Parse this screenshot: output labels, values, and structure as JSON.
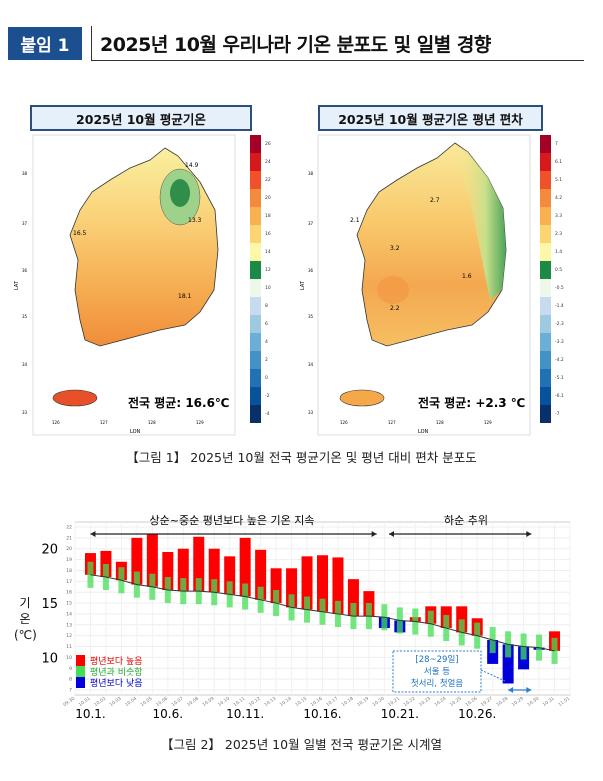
{
  "header": {
    "badge": "붙임 1",
    "title": "2025년 10월 우리나라 기온 분포도 및 일별 경향"
  },
  "map_mean": {
    "title": "2025년 10월 평균기온",
    "summary": "전국 평균: 16.6℃",
    "colorbar": [
      "26",
      "24",
      "22",
      "20",
      "18",
      "16",
      "14",
      "12",
      "10",
      "8",
      "6",
      "4",
      "2",
      "0",
      "-2",
      "-4"
    ],
    "colors": [
      "#a50026",
      "#d7191c",
      "#f0502a",
      "#f58a3c",
      "#f9b04f",
      "#fcd470",
      "#fdf7a8",
      "#1a8a46",
      "#edf8ea",
      "#c6dbef",
      "#9ecae1",
      "#6baed6",
      "#4292c6",
      "#2171b5",
      "#08519c",
      "#08306b"
    ],
    "contour_labels": [
      "14.9",
      "13.3",
      "16.5",
      "18.1"
    ],
    "lat_ticks": [
      "38",
      "37",
      "36",
      "35",
      "34",
      "33"
    ],
    "lon_ticks": [
      "126",
      "127",
      "128",
      "129"
    ],
    "xlabel": "LON",
    "ylabel": "LAT"
  },
  "map_anomaly": {
    "title": "2025년 10월 평균기온  평년 편차",
    "summary": "전국 평균: +2.3 ℃",
    "colorbar": [
      "7",
      "6.1",
      "5.1",
      "4.2",
      "3.3",
      "2.3",
      "1.4",
      "0.5",
      "-0.5",
      "-1.4",
      "-2.3",
      "-3.3",
      "-4.2",
      "-5.1",
      "-6.1",
      "-7"
    ],
    "colors": [
      "#a50026",
      "#d7191c",
      "#f0502a",
      "#f58a3c",
      "#f9b04f",
      "#fcd470",
      "#fdf7a8",
      "#1a8a46",
      "#edf8ea",
      "#c6dbef",
      "#9ecae1",
      "#6baed6",
      "#4292c6",
      "#2171b5",
      "#08519c",
      "#08306b"
    ],
    "contour_labels": [
      "2.7",
      "3.2",
      "2.1",
      "1.6",
      "2.2"
    ],
    "lat_ticks": [
      "38",
      "37",
      "36",
      "35",
      "34",
      "33"
    ],
    "lon_ticks": [
      "126",
      "127",
      "128",
      "129"
    ],
    "xlabel": "LON",
    "ylabel": "LAT"
  },
  "caption1": "【그림 1】 2025년 10월 전국 평균기온 및 평년 대비 편차 분포도",
  "caption2": "【그림 2】 2025년 10월 일별 전국 평균기온 시계열",
  "chart_data": {
    "type": "bar",
    "ylabel": "기온\n(℃)",
    "ylabel_lines": [
      "기",
      "온",
      "(℃)"
    ],
    "ylim": [
      7,
      22
    ],
    "y_major_ticks": [
      "20",
      "15",
      "10"
    ],
    "y_minor_ticks": [
      "22",
      "21",
      "20",
      "19",
      "18",
      "17",
      "16",
      "15",
      "14",
      "13",
      "12",
      "11",
      "10",
      "9",
      "8",
      "7"
    ],
    "x_tick_labels": [
      "09.30",
      "10.01",
      "10.02",
      "10.03",
      "10.04",
      "10.05",
      "10.06",
      "10.07",
      "10.08",
      "10.09",
      "10.10",
      "10.11",
      "10.12",
      "10.13",
      "10.14",
      "10.15",
      "10.16",
      "10.17",
      "10.18",
      "10.19",
      "10.20",
      "10.21",
      "10.22",
      "10.23",
      "10.24",
      "10.25",
      "10.26",
      "10.27",
      "10.28",
      "10.29",
      "10.30",
      "10.31",
      "11.01"
    ],
    "x_major_labels": [
      "10.1.",
      "10.6.",
      "10.11.",
      "10.16.",
      "10.21.",
      "10.26."
    ],
    "days": [
      1,
      2,
      3,
      4,
      5,
      6,
      7,
      8,
      9,
      10,
      11,
      12,
      13,
      14,
      15,
      16,
      17,
      18,
      19,
      20,
      21,
      22,
      23,
      24,
      25,
      26,
      27,
      28,
      29,
      30,
      31
    ],
    "observed": [
      19.6,
      19.8,
      18.8,
      21.0,
      21.4,
      19.7,
      20.0,
      21.1,
      20.0,
      19.3,
      21.0,
      19.9,
      18.2,
      18.2,
      19.3,
      19.4,
      19.2,
      17.2,
      16.1,
      12.7,
      12.3,
      13.7,
      14.7,
      14.7,
      14.7,
      13.6,
      9.4,
      7.6,
      8.9,
      10.7,
      12.4
    ],
    "normal": [
      17.6,
      17.4,
      17.1,
      16.7,
      16.5,
      16.2,
      16.1,
      16.1,
      16.0,
      15.8,
      15.6,
      15.3,
      15.0,
      14.6,
      14.4,
      14.2,
      14.0,
      13.8,
      13.8,
      13.7,
      13.4,
      13.3,
      13.1,
      12.7,
      12.3,
      12.0,
      11.6,
      11.2,
      11.0,
      10.9,
      10.6
    ],
    "normal_range": 1.2,
    "legend": [
      {
        "label": "평년보다 높음",
        "color": "#ff0000"
      },
      {
        "label": "평년과 비슷함",
        "color": "#44dd55"
      },
      {
        "label": "평년보다 낮음",
        "color": "#0000dd"
      }
    ],
    "annotations": {
      "period1": "상순~중순 평년보다 높은 기온 지속",
      "period2": "하순 추위",
      "box_lines": [
        "[28~29일]",
        "서울 등",
        "첫서리, 첫얼음"
      ]
    },
    "grid": true
  }
}
